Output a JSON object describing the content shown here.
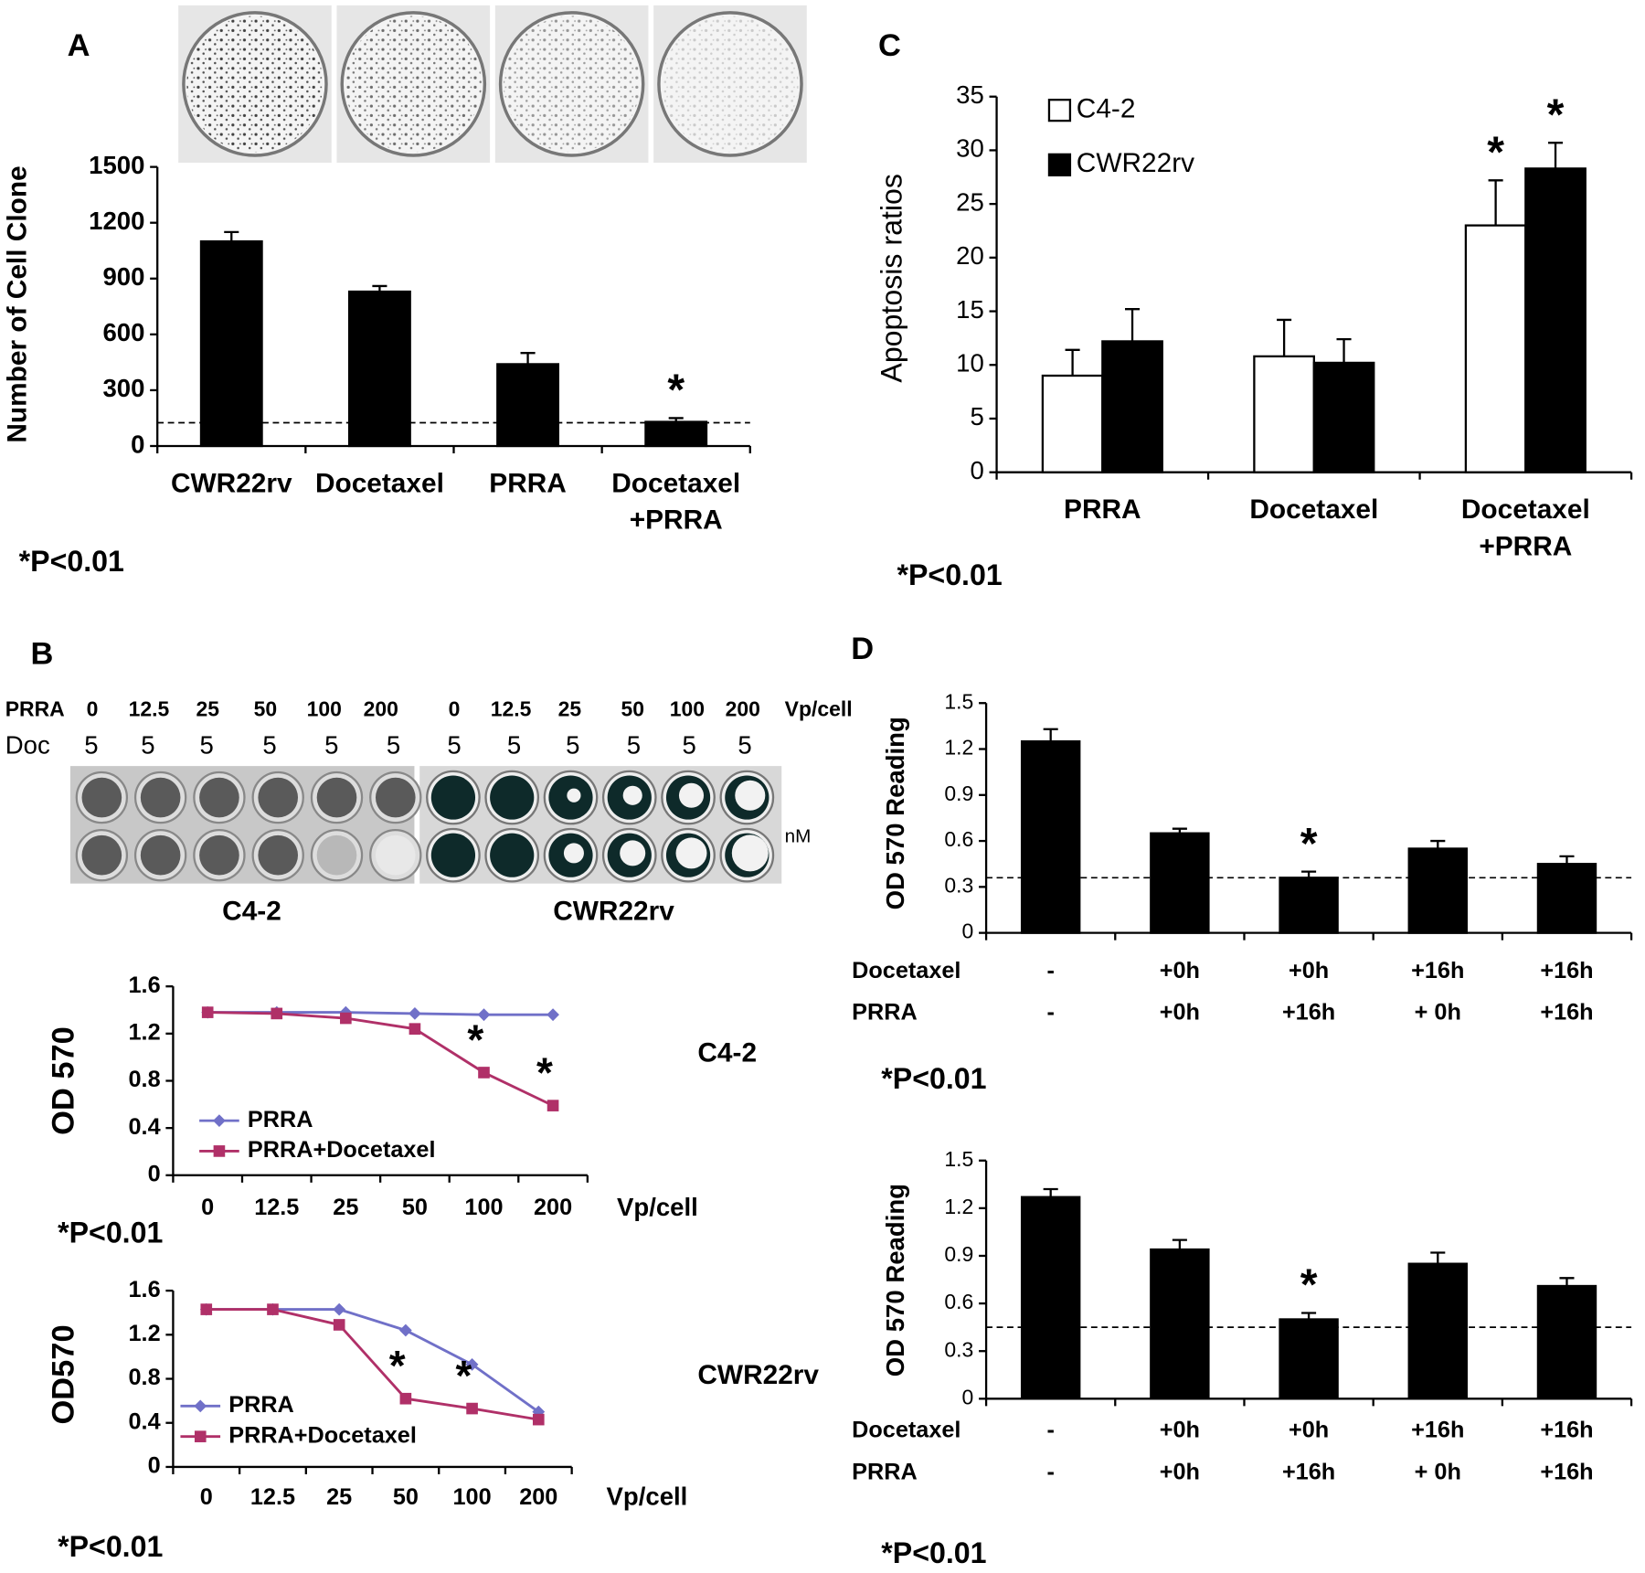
{
  "chart_data": [
    {
      "type": "bar",
      "panel_label": "A",
      "ylabel": "Number of Cell Clone",
      "categories": [
        "CWR22rv",
        "Docetaxel",
        "PRRA",
        "Docetaxel\n+PRRA"
      ],
      "values": [
        1100,
        830,
        440,
        130
      ],
      "errors": [
        50,
        30,
        60,
        20
      ],
      "color": "#000000",
      "annotations": [
        null,
        null,
        null,
        "*"
      ],
      "reference_line": 125,
      "ylim": [
        0,
        1500
      ],
      "yticks": [
        0,
        300,
        600,
        900,
        1200,
        1500
      ],
      "footnote": "*P<0.01"
    },
    {
      "type": "bar",
      "panel_label": "C",
      "ylabel": "Apoptosis ratios",
      "categories": [
        "PRRA",
        "Docetaxel",
        "Docetaxel\n+PRRA"
      ],
      "series": [
        {
          "name": "C4-2",
          "color": "#ffffff",
          "values": [
            9,
            10.8,
            23
          ],
          "errors": [
            2.4,
            3.4,
            4.2
          ],
          "annotations": [
            null,
            null,
            "*"
          ]
        },
        {
          "name": "CWR22rv",
          "color": "#000000",
          "values": [
            12.2,
            10.2,
            28.3
          ],
          "errors": [
            3,
            2.2,
            2.4
          ],
          "annotations": [
            null,
            null,
            "*"
          ]
        }
      ],
      "legend": "upper left",
      "ylim": [
        0,
        35
      ],
      "yticks": [
        0,
        5,
        10,
        15,
        20,
        25,
        30,
        35
      ],
      "footnote": "*P<0.01"
    },
    {
      "type": "line",
      "ylabel": "OD 570",
      "xlabel": "Vp/cell",
      "side_label": "C4-2",
      "categories": [
        "0",
        "12.5",
        "25",
        "50",
        "100",
        "200"
      ],
      "series": [
        {
          "name": "PRRA",
          "color": "#7070c8",
          "marker": "diamond",
          "values": [
            1.38,
            1.38,
            1.38,
            1.37,
            1.36,
            1.36
          ]
        },
        {
          "name": "PRRA+Docetaxel",
          "color": "#b03068",
          "marker": "square",
          "values": [
            1.38,
            1.37,
            1.33,
            1.24,
            0.87,
            0.59
          ]
        }
      ],
      "annotations": [
        null,
        null,
        null,
        null,
        "*",
        "*"
      ],
      "legend": "lower left",
      "ylim": [
        0,
        1.6
      ],
      "yticks": [
        0,
        0.4,
        0.8,
        1.2,
        1.6
      ],
      "footnote": "*P<0.01"
    },
    {
      "type": "line",
      "ylabel": "OD570",
      "xlabel": "Vp/cell",
      "side_label": "CWR22rv",
      "categories": [
        "0",
        "12.5",
        "25",
        "50",
        "100",
        "200"
      ],
      "series": [
        {
          "name": "PRRA",
          "color": "#7070c8",
          "marker": "diamond",
          "values": [
            1.43,
            1.43,
            1.43,
            1.24,
            0.93,
            0.5
          ]
        },
        {
          "name": "PRRA+Docetaxel",
          "color": "#b03068",
          "marker": "square",
          "values": [
            1.43,
            1.43,
            1.29,
            0.62,
            0.53,
            0.43
          ]
        }
      ],
      "annotations": [
        null,
        null,
        null,
        "*",
        "*",
        null
      ],
      "legend": "lower left",
      "ylim": [
        0,
        1.6
      ],
      "yticks": [
        0,
        0.4,
        0.8,
        1.2,
        1.6
      ],
      "footnote": "*P<0.01"
    },
    {
      "type": "bar",
      "panel_label": "D",
      "ylabel": "OD 570 Reading",
      "category_rows": [
        {
          "name": "Docetaxel",
          "labels": [
            "-",
            "+0h",
            "+0h",
            "+16h",
            "+16h"
          ]
        },
        {
          "name": "PRRA",
          "labels": [
            "-",
            "+0h",
            "+16h",
            "+ 0h",
            "+16h"
          ]
        }
      ],
      "values": [
        1.25,
        0.65,
        0.36,
        0.55,
        0.45
      ],
      "errors": [
        0.08,
        0.03,
        0.04,
        0.05,
        0.05
      ],
      "color": "#000000",
      "annotations": [
        null,
        null,
        "*",
        null,
        null
      ],
      "reference_line": 0.36,
      "ylim": [
        0,
        1.5
      ],
      "yticks": [
        0,
        0.3,
        0.6,
        0.9,
        1.2,
        1.5
      ],
      "footnote": "*P<0.01"
    },
    {
      "type": "bar",
      "ylabel": "OD 570 Reading",
      "category_rows": [
        {
          "name": "Docetaxel",
          "labels": [
            "-",
            "+0h",
            "+0h",
            "+16h",
            "+16h"
          ]
        },
        {
          "name": "PRRA",
          "labels": [
            "-",
            "+0h",
            "+16h",
            "+ 0h",
            "+16h"
          ]
        }
      ],
      "values": [
        1.27,
        0.94,
        0.5,
        0.85,
        0.71
      ],
      "errors": [
        0.05,
        0.06,
        0.04,
        0.07,
        0.05
      ],
      "color": "#000000",
      "annotations": [
        null,
        null,
        "*",
        null,
        null
      ],
      "reference_line": 0.45,
      "ylim": [
        0,
        1.5
      ],
      "yticks": [
        0,
        0.3,
        0.6,
        0.9,
        1.2,
        1.5
      ],
      "footnote": "*P<0.01"
    }
  ],
  "plate_panel": {
    "panel_label": "B",
    "row1_name": "PRRA",
    "row2_name": "Doc",
    "dose_unit": "Vp/cell",
    "doc_unit": "nM",
    "groups": [
      {
        "name": "C4-2",
        "doses": [
          "0",
          "12.5",
          "25",
          "50",
          "100",
          "200"
        ],
        "doc": [
          "5",
          "5",
          "5",
          "5",
          "5",
          "5"
        ]
      },
      {
        "name": "CWR22rv",
        "doses": [
          "0",
          "12.5",
          "25",
          "50",
          "100",
          "200"
        ],
        "doc": [
          "5",
          "5",
          "5",
          "5",
          "5",
          "5"
        ]
      }
    ]
  }
}
